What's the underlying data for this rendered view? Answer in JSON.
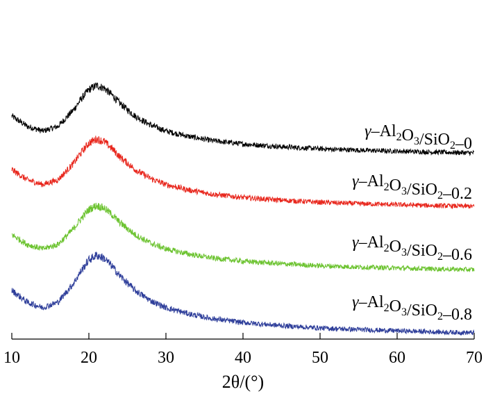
{
  "chart_data": {
    "type": "line",
    "xlabel": "2θ/(°)",
    "ylabel": "",
    "xlim": [
      10,
      70
    ],
    "x_ticks": [
      10,
      20,
      30,
      40,
      50,
      60,
      70
    ],
    "grid": false,
    "legend": "inline-right",
    "curve_shape": {
      "x": [
        10,
        12,
        14,
        16,
        18,
        19,
        20,
        21,
        22,
        23,
        24,
        26,
        28,
        30,
        33,
        36,
        40,
        45,
        50,
        55,
        60,
        65,
        70
      ],
      "y": [
        0.55,
        0.4,
        0.33,
        0.4,
        0.64,
        0.8,
        0.94,
        1.0,
        0.96,
        0.86,
        0.74,
        0.55,
        0.42,
        0.33,
        0.25,
        0.19,
        0.14,
        0.1,
        0.07,
        0.05,
        0.035,
        0.02,
        0.01
      ]
    },
    "series": [
      {
        "name": "γ-Al2O3/SiO2-0",
        "color": "#000000",
        "scale": 1.0,
        "offset": 3
      },
      {
        "name": "γ-Al2O3/SiO2-0.2",
        "color": "#e8261c",
        "scale": 1.0,
        "offset": 2
      },
      {
        "name": "γ-Al2O3/SiO2-0.6",
        "color": "#6cc330",
        "scale": 0.95,
        "offset": 1
      },
      {
        "name": "γ-Al2O3/SiO2-0.8",
        "color": "#2e3e9a",
        "scale": 1.15,
        "offset": 0
      }
    ]
  }
}
